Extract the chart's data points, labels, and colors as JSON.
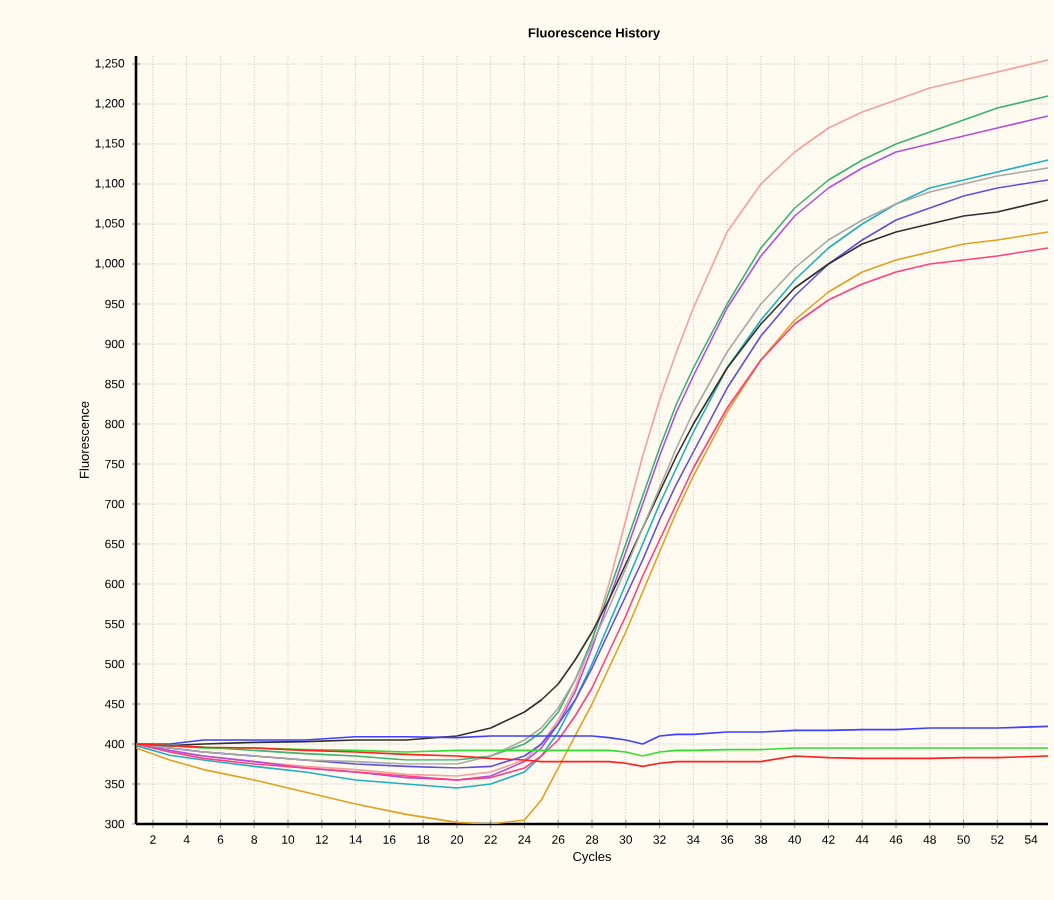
{
  "chart_data": {
    "type": "line",
    "title": "Fluorescence History",
    "xlabel": "Cycles",
    "ylabel": "Fluorescence",
    "x": [
      1,
      3,
      5,
      8,
      11,
      14,
      17,
      20,
      22,
      24,
      25,
      26,
      27,
      28,
      29,
      30,
      31,
      32,
      33,
      34,
      36,
      38,
      40,
      42,
      44,
      46,
      48,
      50,
      52,
      55
    ],
    "xlim": [
      1,
      55
    ],
    "xticks": [
      2,
      4,
      6,
      8,
      10,
      12,
      14,
      16,
      18,
      20,
      22,
      24,
      26,
      28,
      30,
      32,
      34,
      36,
      38,
      40,
      42,
      44,
      46,
      48,
      50,
      52,
      54
    ],
    "ylim": [
      300,
      1260
    ],
    "yticks": [
      300,
      350,
      400,
      450,
      500,
      550,
      600,
      650,
      700,
      750,
      800,
      850,
      900,
      950,
      {
        "value": 1000,
        "label": "1,000"
      },
      {
        "value": 1050,
        "label": "1,050"
      },
      {
        "value": 1100,
        "label": "1,100"
      },
      {
        "value": 1150,
        "label": "1,150"
      },
      {
        "value": 1200,
        "label": "1,200"
      },
      {
        "value": 1250,
        "label": "1,250"
      }
    ],
    "grid": true,
    "marker": "none",
    "line_style": "solid",
    "series": [
      {
        "color": "#f4a0a0",
        "values": [
          400,
          390,
          385,
          378,
          372,
          368,
          362,
          360,
          365,
          380,
          400,
          430,
          470,
          530,
          600,
          680,
          760,
          830,
          890,
          945,
          1040,
          1100,
          1140,
          1170,
          1190,
          1205,
          1220,
          1230,
          1240,
          1255
        ]
      },
      {
        "color": "#3cb371",
        "values": [
          400,
          398,
          396,
          392,
          388,
          385,
          380,
          380,
          385,
          400,
          415,
          440,
          480,
          530,
          590,
          650,
          710,
          770,
          825,
          870,
          950,
          1020,
          1070,
          1105,
          1130,
          1150,
          1165,
          1180,
          1195,
          1210
        ]
      },
      {
        "color": "#b050e0",
        "values": [
          400,
          392,
          385,
          378,
          370,
          365,
          358,
          355,
          360,
          378,
          395,
          425,
          465,
          520,
          580,
          640,
          700,
          760,
          815,
          860,
          945,
          1010,
          1060,
          1095,
          1120,
          1140,
          1150,
          1160,
          1170,
          1185
        ]
      },
      {
        "color": "#20b0c0",
        "values": [
          398,
          386,
          380,
          372,
          365,
          355,
          350,
          345,
          350,
          365,
          385,
          415,
          455,
          500,
          550,
          600,
          650,
          700,
          745,
          790,
          870,
          930,
          980,
          1020,
          1050,
          1075,
          1095,
          1105,
          1115,
          1130
        ]
      },
      {
        "color": "#6050e0",
        "values": [
          400,
          395,
          390,
          385,
          380,
          375,
          372,
          370,
          372,
          385,
          400,
          425,
          455,
          495,
          540,
          585,
          630,
          680,
          725,
          765,
          845,
          910,
          960,
          1000,
          1030,
          1055,
          1070,
          1085,
          1095,
          1105
        ]
      },
      {
        "color": "#303030",
        "values": [
          400,
          398,
          400,
          402,
          403,
          405,
          405,
          410,
          420,
          440,
          455,
          475,
          505,
          540,
          580,
          625,
          670,
          715,
          760,
          800,
          870,
          925,
          970,
          1000,
          1025,
          1040,
          1050,
          1060,
          1065,
          1080
        ]
      },
      {
        "color": "#a8a8a8",
        "values": [
          400,
          395,
          390,
          385,
          380,
          378,
          375,
          375,
          385,
          405,
          420,
          445,
          480,
          525,
          570,
          620,
          670,
          720,
          770,
          815,
          890,
          950,
          995,
          1030,
          1055,
          1075,
          1090,
          1100,
          1110,
          1120
        ]
      },
      {
        "color": "#e0a020",
        "values": [
          395,
          380,
          368,
          355,
          340,
          325,
          312,
          302,
          300,
          305,
          330,
          370,
          410,
          450,
          495,
          540,
          590,
          640,
          690,
          735,
          815,
          880,
          930,
          965,
          990,
          1005,
          1015,
          1025,
          1030,
          1040
        ]
      },
      {
        "color": "#ff4080",
        "values": [
          400,
          390,
          382,
          375,
          370,
          365,
          360,
          355,
          358,
          370,
          385,
          405,
          435,
          470,
          515,
          560,
          610,
          655,
          700,
          745,
          820,
          880,
          925,
          955,
          975,
          990,
          1000,
          1005,
          1010,
          1020
        ]
      },
      {
        "color": "#4040ff",
        "values": [
          400,
          400,
          405,
          405,
          405,
          409,
          409,
          408,
          410,
          410,
          410,
          410,
          410,
          410,
          408,
          405,
          400,
          410,
          412,
          412,
          415,
          415,
          417,
          417,
          418,
          418,
          420,
          420,
          420,
          422
        ]
      },
      {
        "color": "#30e030",
        "values": [
          400,
          398,
          395,
          395,
          393,
          392,
          390,
          392,
          392,
          392,
          392,
          392,
          392,
          392,
          392,
          390,
          385,
          390,
          392,
          392,
          393,
          393,
          395,
          395,
          395,
          395,
          395,
          395,
          395,
          395
        ]
      },
      {
        "color": "#ff2020",
        "values": [
          400,
          398,
          396,
          395,
          392,
          390,
          387,
          385,
          382,
          380,
          378,
          378,
          378,
          378,
          378,
          376,
          372,
          376,
          378,
          378,
          378,
          378,
          385,
          383,
          382,
          382,
          382,
          383,
          383,
          385
        ]
      }
    ]
  }
}
